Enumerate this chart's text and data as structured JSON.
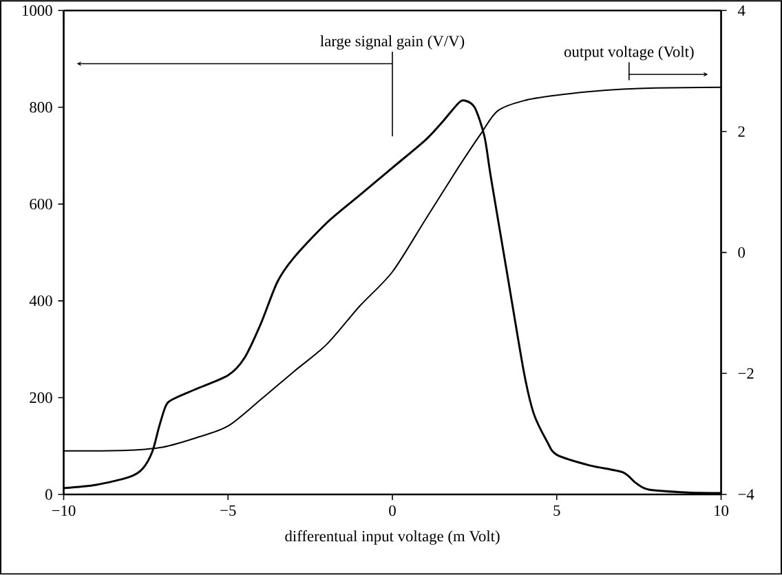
{
  "chart_data": {
    "type": "line",
    "xlabel": "differentual input voltage (m Volt)",
    "xlim": [
      -10,
      10
    ],
    "xticks": [
      {
        "value": -10,
        "label": "−10"
      },
      {
        "value": -5,
        "label": "−5"
      },
      0,
      5,
      10
    ],
    "ylim": [
      0,
      1000
    ],
    "yticks": [
      0,
      200,
      400,
      600,
      800,
      1000
    ],
    "y2lim": [
      -4,
      4
    ],
    "y2ticks": [
      {
        "value": -4,
        "label": "−4"
      },
      {
        "value": -2,
        "label": "−2"
      },
      0,
      2,
      4
    ],
    "series": [
      {
        "color": "#000000",
        "x": [
          -10,
          -9,
          -8,
          -7.6,
          -7.3,
          -7.1,
          -6.9,
          -6.7,
          -6,
          -5,
          -4.5,
          -4,
          -3.5,
          -3,
          -2,
          -1,
          0,
          1,
          1.5,
          2,
          2.2,
          2.5,
          2.8,
          3,
          3.5,
          4,
          4.3,
          4.7,
          5,
          6,
          7,
          7.4,
          7.8,
          9,
          10
        ],
        "values": [
          13,
          20,
          36,
          53,
          89,
          139,
          182,
          196,
          217,
          246,
          282,
          353,
          439,
          489,
          561,
          618,
          675,
          732,
          768,
          808,
          814,
          800,
          740,
          654,
          453,
          253,
          167,
          110,
          82,
          60,
          46,
          24,
          10,
          4,
          3
        ]
      },
      {
        "color": "#000000",
        "axis": "y2",
        "x": [
          -10,
          -9,
          -8,
          -7,
          -6,
          -5,
          -4,
          -3,
          -2,
          -1,
          0,
          1,
          2,
          2.7,
          3.2,
          4,
          5,
          6,
          7,
          8,
          10
        ],
        "values": [
          -3.28,
          -3.28,
          -3.27,
          -3.22,
          -3.07,
          -2.87,
          -2.43,
          -1.97,
          -1.52,
          -0.89,
          -0.32,
          0.54,
          1.4,
          1.97,
          2.34,
          2.51,
          2.6,
          2.66,
          2.7,
          2.72,
          2.73
        ]
      }
    ],
    "annotations": [
      "large signal gain (V/V)",
      "output voltage (Volt)"
    ]
  }
}
